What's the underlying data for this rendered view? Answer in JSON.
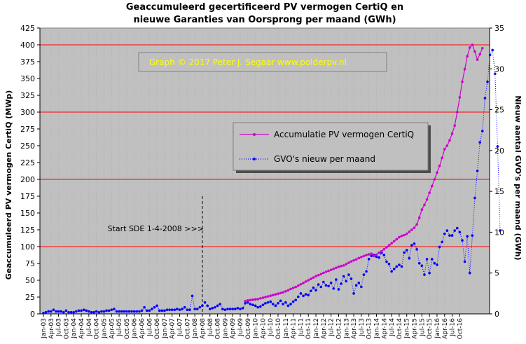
{
  "chart_data": {
    "type": "line",
    "title_lines": [
      "Geaccumuleerd  gecertificeerd  PV vermogen CertiQ en",
      "nieuwe  Garanties  van Oorsprong  per maand (GWh)"
    ],
    "ylabel_left": "Geaccumuleerd PV vermogen CertiQ (MWp)",
    "ylabel_right": "Nieuw aantal GVO's per maand (GWh)",
    "credit": "Graph  ©  2017  Peter  J.  Segaar   www.polderpv.nl",
    "annotation": "Start SDE 1-4-2008  >>>",
    "annotation_x": "Apr-08",
    "ylim_left": [
      0,
      425
    ],
    "ylim_right": [
      0,
      35
    ],
    "yticks_left": [
      "0",
      "25",
      "50",
      "75",
      "100",
      "125",
      "150",
      "175",
      "200",
      "225",
      "250",
      "275",
      "300",
      "325",
      "350",
      "375",
      "400",
      "425"
    ],
    "yticks_right": [
      "0",
      "5",
      "10",
      "15",
      "20",
      "25",
      "30",
      "35"
    ],
    "red_gridlines_left": [
      100,
      200,
      300,
      400
    ],
    "x_tick_labels": [
      "Jan-03",
      "Apr-03",
      "Jul-03",
      "Oct-03",
      "Jan-04",
      "Apr-04",
      "Jul-04",
      "Oct-04",
      "Jan-05",
      "Apr-05",
      "Jul-05",
      "Oct-05",
      "Jan-06",
      "Apr-06",
      "Jul-06",
      "Oct-06",
      "Jan-07",
      "Apr-07",
      "Jul-07",
      "Oct-07",
      "Jan-08",
      "Apr-08",
      "Jul-08",
      "Oct-08",
      "Jan-09",
      "Apr-09",
      "Jul-09",
      "Oct-09",
      "Jan-10",
      "Apr-10",
      "Jul-10",
      "Oct-10",
      "Jan-11",
      "Apr-11",
      "Jul-11",
      "Oct-11",
      "Jan-12",
      "Apr-12",
      "Jul-12",
      "Oct-12",
      "Jan-13",
      "Apr-13",
      "Jul-13",
      "Oct-13",
      "Jan-14",
      "Apr-14",
      "Jul-14",
      "Oct-14",
      "Jan-15",
      "Apr-15",
      "Jul-15",
      "Oct-15",
      "Jan-16",
      "Apr-16",
      "Jul-16",
      "Oct-16"
    ],
    "legend": [
      {
        "name": "Accumulatie PV vermogen CertiQ",
        "color": "#cc00cc",
        "style": "solid"
      },
      {
        "name": "GVO's nieuw per maand",
        "color": "#0000ff",
        "style": "dotted"
      }
    ],
    "series": [
      {
        "name": "Accumulatie PV vermogen CertiQ",
        "axis": "left",
        "start_month": "Jan-03",
        "values_by_month_index": {
          "80": 19,
          "81": 20,
          "82": 20.5,
          "83": 21,
          "84": 21.5,
          "85": 22,
          "86": 23,
          "87": 24,
          "88": 25,
          "89": 26,
          "90": 27,
          "91": 28,
          "92": 29,
          "93": 30,
          "94": 31,
          "95": 32,
          "96": 33.5,
          "97": 35,
          "98": 37,
          "99": 38.5,
          "100": 40,
          "101": 42,
          "102": 44,
          "103": 46,
          "104": 48,
          "105": 50,
          "106": 52,
          "107": 54,
          "108": 56,
          "109": 57.5,
          "110": 59,
          "111": 61,
          "112": 62.5,
          "113": 64,
          "114": 65.5,
          "115": 67,
          "116": 68.5,
          "117": 70,
          "118": 71,
          "119": 72,
          "120": 74,
          "121": 76,
          "122": 78,
          "123": 79.5,
          "124": 81,
          "125": 83,
          "126": 84.5,
          "127": 86,
          "128": 87.5,
          "129": 88.5,
          "130": 89.5,
          "131": 86,
          "132": 88,
          "133": 91,
          "134": 93,
          "135": 96,
          "136": 99,
          "137": 102,
          "138": 105,
          "139": 108,
          "140": 111,
          "141": 114,
          "142": 116,
          "143": 117,
          "144": 119,
          "145": 122,
          "146": 125,
          "147": 128,
          "148": 133,
          "149": 143,
          "150": 155,
          "151": 162,
          "152": 170,
          "153": 180,
          "154": 190,
          "155": 200,
          "156": 210,
          "157": 220,
          "158": 232,
          "159": 245,
          "160": 250,
          "161": 258,
          "162": 268,
          "163": 280,
          "164": 300,
          "165": 322,
          "166": 345,
          "167": 364,
          "168": 383,
          "169": 396,
          "170": 400,
          "171": 390,
          "172": 378,
          "173": 386,
          "174": 395
        }
      },
      {
        "name": "GVO's nieuw per maand",
        "axis": "right",
        "start_month": "Jan-03",
        "values": [
          0.1,
          0.2,
          0.3,
          0.3,
          0.5,
          0.3,
          0.3,
          0.3,
          0.2,
          0.4,
          0.2,
          0.2,
          0.2,
          0.3,
          0.4,
          0.4,
          0.5,
          0.4,
          0.3,
          0.2,
          0.2,
          0.3,
          0.2,
          0.3,
          0.3,
          0.4,
          0.4,
          0.5,
          0.6,
          0.3,
          0.3,
          0.3,
          0.3,
          0.3,
          0.3,
          0.3,
          0.3,
          0.3,
          0.3,
          0.4,
          0.8,
          0.4,
          0.4,
          0.6,
          0.8,
          1.0,
          0.4,
          0.4,
          0.4,
          0.5,
          0.5,
          0.5,
          0.5,
          0.6,
          0.5,
          0.6,
          0.8,
          0.5,
          0.5,
          2.2,
          0.6,
          0.6,
          0.8,
          1.0,
          1.4,
          1.0,
          0.6,
          0.7,
          0.8,
          1.0,
          1.2,
          0.6,
          0.5,
          0.6,
          0.6,
          0.6,
          0.6,
          0.7,
          0.6,
          0.7,
          1.3,
          1.4,
          1.2,
          1.1,
          1.0,
          0.8,
          0.9,
          1.1,
          1.3,
          1.4,
          1.5,
          1.2,
          1.0,
          1.3,
          1.6,
          1.2,
          1.4,
          1.0,
          1.2,
          1.5,
          1.7,
          2.1,
          2.5,
          2.2,
          2.4,
          2.3,
          2.8,
          3.2,
          2.9,
          3.6,
          3.3,
          3.9,
          3.5,
          3.4,
          3.8,
          3.1,
          4.2,
          3.0,
          3.7,
          4.6,
          4.0,
          4.8,
          4.3,
          2.5,
          3.5,
          3.8,
          3.3,
          4.8,
          5.2,
          6.7,
          7.1,
          7.2,
          7.0,
          6.9,
          7.5,
          7.2,
          6.4,
          6.1,
          5.2,
          5.5,
          5.8,
          6.0,
          5.8,
          7.5,
          7.8,
          6.8,
          8.4,
          8.6,
          7.9,
          6.2,
          5.9,
          4.8,
          6.7,
          5.0,
          6.7,
          6.2,
          6.0,
          8.2,
          8.8,
          9.8,
          10.2,
          9.6,
          9.6,
          10.2,
          10.5,
          10.0,
          9.0,
          6.4,
          9.5,
          5.0,
          9.6,
          14.2,
          17.5,
          21.0,
          22.4,
          26.4,
          28.4,
          31.7,
          32.3,
          29.4,
          20.5,
          10.2
        ],
        "note": "monthly values, one point per month from Jan-03"
      }
    ],
    "grid": true,
    "legend_placement": "center-right"
  }
}
